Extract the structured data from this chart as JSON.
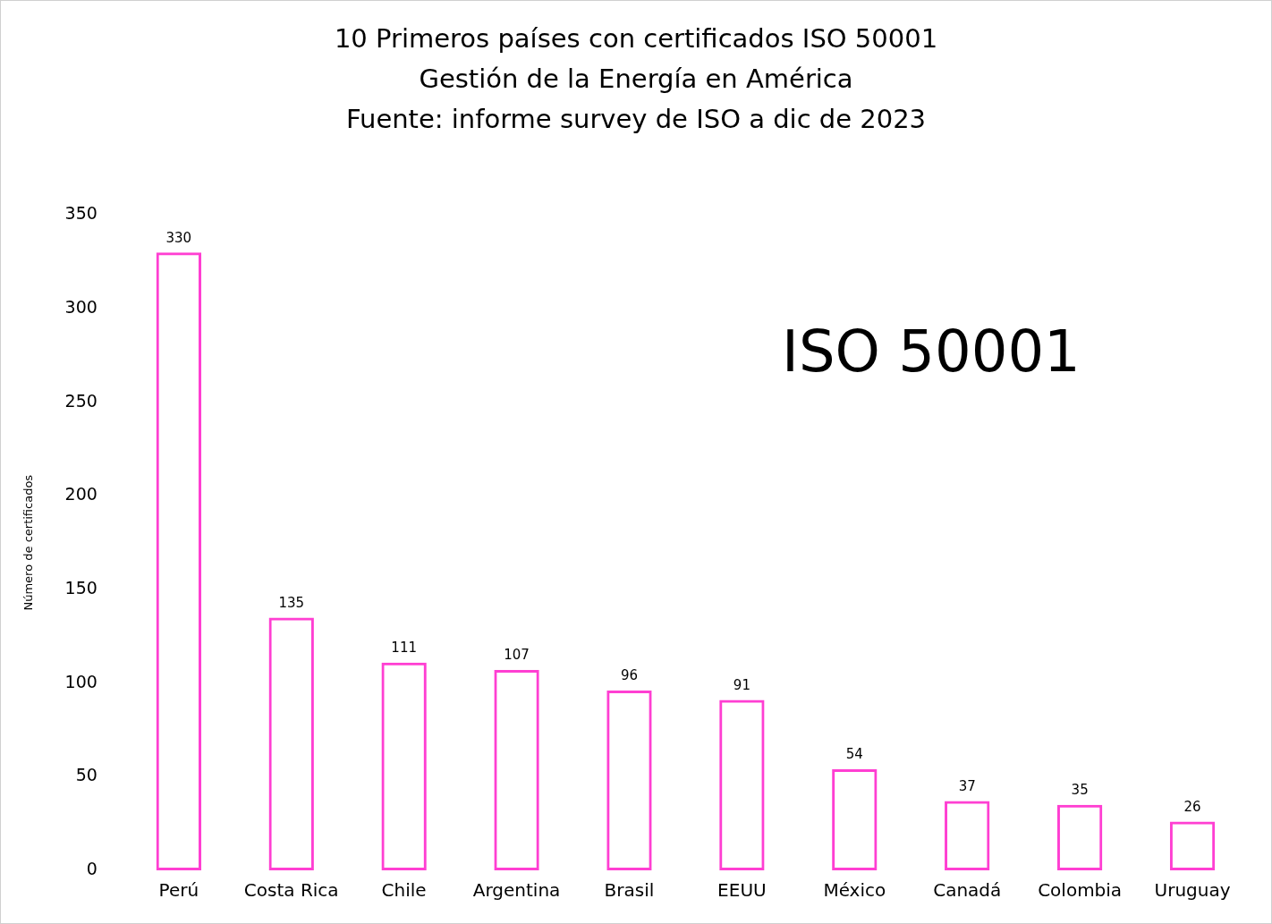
{
  "chart_data": {
    "type": "bar",
    "title": "10 Primeros países con certificados ISO 50001\nGestión de la Energía en América",
    "ylabel": "Número de certificados",
    "annotations": [
      "Fuente: informe survey de ISO a dic de 2023",
      "ISO 50001"
    ],
    "categories": [
      "Perú",
      "Costa Rica",
      "Chile",
      "Argentina",
      "Brasil",
      "EEUU",
      "México",
      "Canadá",
      "Colombia",
      "Uruguay"
    ],
    "values": [
      330,
      135,
      111,
      107,
      96,
      91,
      54,
      37,
      35,
      26
    ],
    "color": "#ff3fd2",
    "ylim": [
      0,
      350
    ],
    "yticks": [
      0,
      50,
      100,
      150,
      200,
      250,
      300,
      350
    ],
    "data_labels": true
  }
}
